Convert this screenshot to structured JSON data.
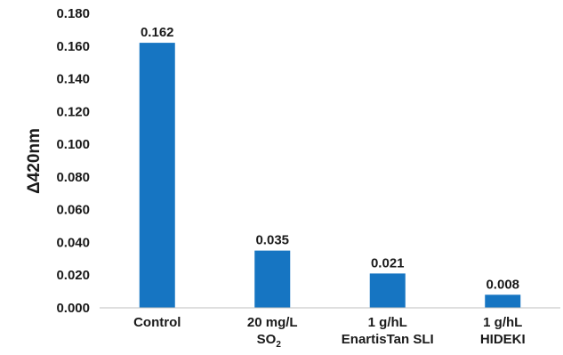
{
  "chart_data": {
    "type": "bar",
    "categories": [
      [
        "Control"
      ],
      [
        "20 mg/L",
        "SO",
        "2"
      ],
      [
        "1 g/hL",
        "EnartisTan SLI"
      ],
      [
        "1 g/hL",
        "HIDEKI"
      ]
    ],
    "values": [
      0.162,
      0.035,
      0.021,
      0.008
    ],
    "data_labels": [
      "0.162",
      "0.035",
      "0.021",
      "0.008"
    ],
    "title": "",
    "xlabel": "",
    "ylabel": "Δ420nm",
    "ylim": [
      0,
      0.18
    ],
    "yticks": [
      "0.000",
      "0.020",
      "0.040",
      "0.060",
      "0.080",
      "0.100",
      "0.120",
      "0.140",
      "0.160",
      "0.180"
    ],
    "grid": false,
    "legend": "none",
    "bar_color": "#1675c2",
    "axis_color": "#bfbfbf"
  }
}
